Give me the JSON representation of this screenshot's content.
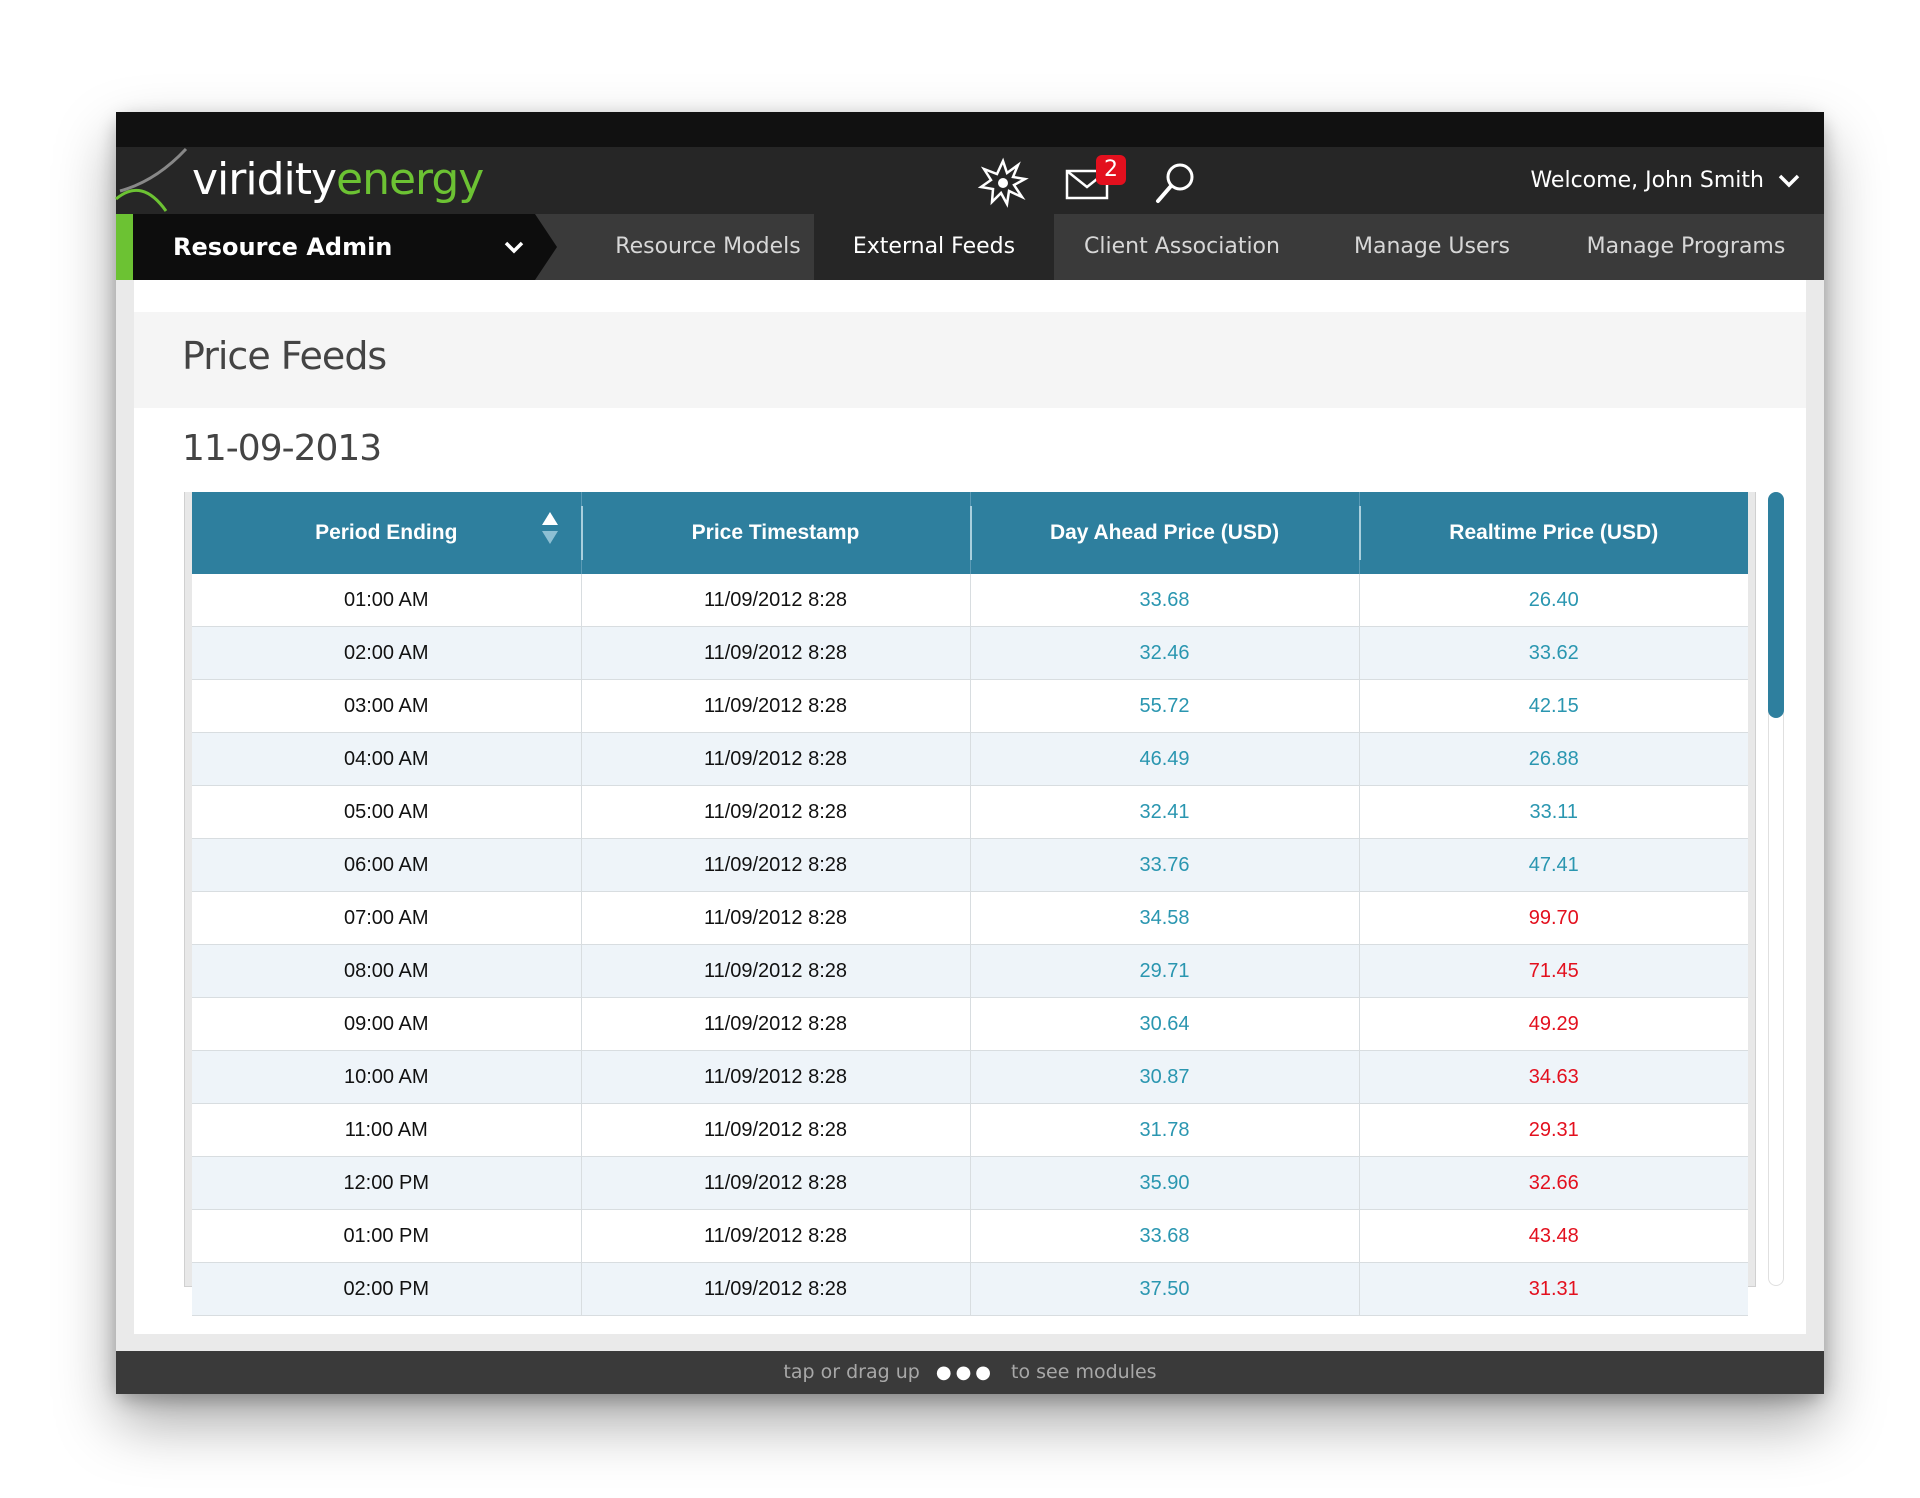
{
  "header": {
    "brand_word1": "viridity",
    "brand_word2": "energy",
    "mail_badge": "2",
    "welcome": "Welcome, John Smith"
  },
  "nav": {
    "dropdown_label": "Resource Admin",
    "tabs": [
      {
        "label": "Resource Models",
        "active": false
      },
      {
        "label": "External Feeds",
        "active": true
      },
      {
        "label": "Client Association",
        "active": false
      },
      {
        "label": "Manage Users",
        "active": false
      },
      {
        "label": "Manage Programs",
        "active": false
      }
    ]
  },
  "page": {
    "title": "Price Feeds",
    "date": "11-09-2013"
  },
  "table": {
    "columns": [
      "Period Ending",
      "Price Timestamp",
      "Day Ahead Price (USD)",
      "Realtime Price (USD)"
    ],
    "rows": [
      {
        "period": "01:00 AM",
        "timestamp": "11/09/2012 8:28",
        "day_ahead": "33.68",
        "realtime": "26.40",
        "realtime_status": "normal"
      },
      {
        "period": "02:00 AM",
        "timestamp": "11/09/2012 8:28",
        "day_ahead": "32.46",
        "realtime": "33.62",
        "realtime_status": "normal"
      },
      {
        "period": "03:00 AM",
        "timestamp": "11/09/2012 8:28",
        "day_ahead": "55.72",
        "realtime": "42.15",
        "realtime_status": "normal"
      },
      {
        "period": "04:00 AM",
        "timestamp": "11/09/2012 8:28",
        "day_ahead": "46.49",
        "realtime": "26.88",
        "realtime_status": "normal"
      },
      {
        "period": "05:00 AM",
        "timestamp": "11/09/2012 8:28",
        "day_ahead": "32.41",
        "realtime": "33.11",
        "realtime_status": "normal"
      },
      {
        "period": "06:00 AM",
        "timestamp": "11/09/2012 8:28",
        "day_ahead": "33.76",
        "realtime": "47.41",
        "realtime_status": "normal"
      },
      {
        "period": "07:00 AM",
        "timestamp": "11/09/2012 8:28",
        "day_ahead": "34.58",
        "realtime": "99.70",
        "realtime_status": "alert"
      },
      {
        "period": "08:00 AM",
        "timestamp": "11/09/2012 8:28",
        "day_ahead": "29.71",
        "realtime": "71.45",
        "realtime_status": "alert"
      },
      {
        "period": "09:00 AM",
        "timestamp": "11/09/2012 8:28",
        "day_ahead": "30.64",
        "realtime": "49.29",
        "realtime_status": "alert"
      },
      {
        "period": "10:00 AM",
        "timestamp": "11/09/2012 8:28",
        "day_ahead": "30.87",
        "realtime": "34.63",
        "realtime_status": "alert"
      },
      {
        "period": "11:00 AM",
        "timestamp": "11/09/2012 8:28",
        "day_ahead": "31.78",
        "realtime": "29.31",
        "realtime_status": "alert"
      },
      {
        "period": "12:00 PM",
        "timestamp": "11/09/2012 8:28",
        "day_ahead": "35.90",
        "realtime": "32.66",
        "realtime_status": "alert"
      },
      {
        "period": "01:00 PM",
        "timestamp": "11/09/2012 8:28",
        "day_ahead": "33.68",
        "realtime": "43.48",
        "realtime_status": "alert"
      },
      {
        "period": "02:00 PM",
        "timestamp": "11/09/2012 8:28",
        "day_ahead": "37.50",
        "realtime": "31.31",
        "realtime_status": "alert"
      }
    ]
  },
  "footer": {
    "hint_before": "tap or drag up",
    "hint_dots": "●●●",
    "hint_after": "to see modules"
  },
  "colors": {
    "brand_green": "#6cc233",
    "table_header": "#2e7f9e",
    "value_blue": "#2a96b0",
    "value_red": "#e3101e"
  },
  "icons": [
    "burst-icon",
    "mail-icon",
    "search-icon",
    "chevron-down-icon",
    "sort-icon"
  ]
}
